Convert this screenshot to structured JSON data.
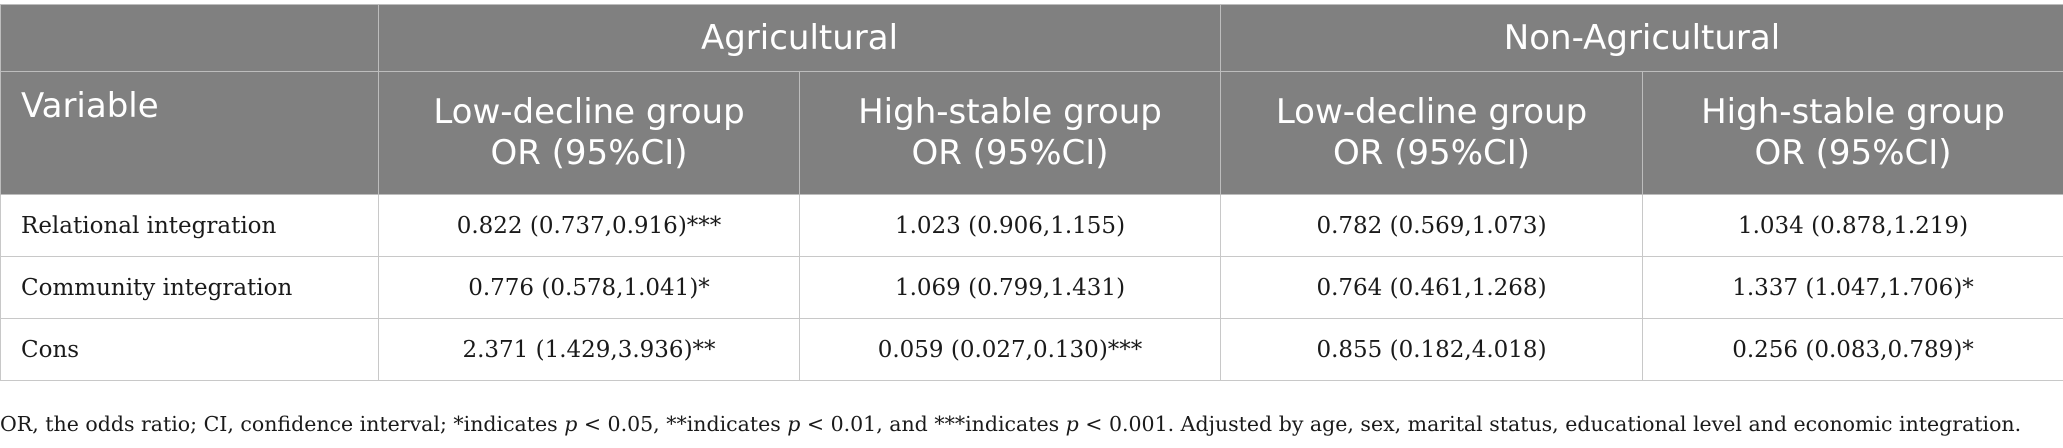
{
  "table": {
    "group_headers": [
      "Agricultural",
      "Non-Agricultural"
    ],
    "variable_header": "Variable",
    "sub_headers": [
      {
        "line1": "Low-decline group",
        "line2": "OR (95%CI)"
      },
      {
        "line1": "High-stable group",
        "line2": "OR (95%CI)"
      },
      {
        "line1": "Low-decline group",
        "line2": "OR (95%CI)"
      },
      {
        "line1": "High-stable group",
        "line2": "OR (95%CI)"
      }
    ],
    "rows": [
      {
        "variable": "Relational integration",
        "values": [
          "0.822 (0.737,0.916)***",
          "1.023 (0.906,1.155)",
          "0.782 (0.569,1.073)",
          "1.034 (0.878,1.219)"
        ]
      },
      {
        "variable": "Community integration",
        "values": [
          "0.776 (0.578,1.041)*",
          "1.069 (0.799,1.431)",
          "0.764 (0.461,1.268)",
          "1.337 (1.047,1.706)*"
        ]
      },
      {
        "variable": "Cons",
        "values": [
          "2.371 (1.429,3.936)**",
          "0.059 (0.027,0.130)***",
          "0.855 (0.182,4.018)",
          "0.256 (0.083,0.789)*"
        ]
      }
    ]
  },
  "footnote": {
    "part1": "OR, the odds ratio; CI, confidence interval; *indicates ",
    "p1": "p",
    "part2": " < 0.05, **indicates ",
    "p2": "p",
    "part3": " < 0.01, and ***indicates ",
    "p3": "p",
    "part4": " < 0.001. Adjusted by age, sex, marital status, educational level and economic integration."
  },
  "colors": {
    "header_bg": "#808080",
    "header_text": "#ffffff",
    "body_text": "#1a1a1a",
    "border": "#c8c8c8"
  }
}
